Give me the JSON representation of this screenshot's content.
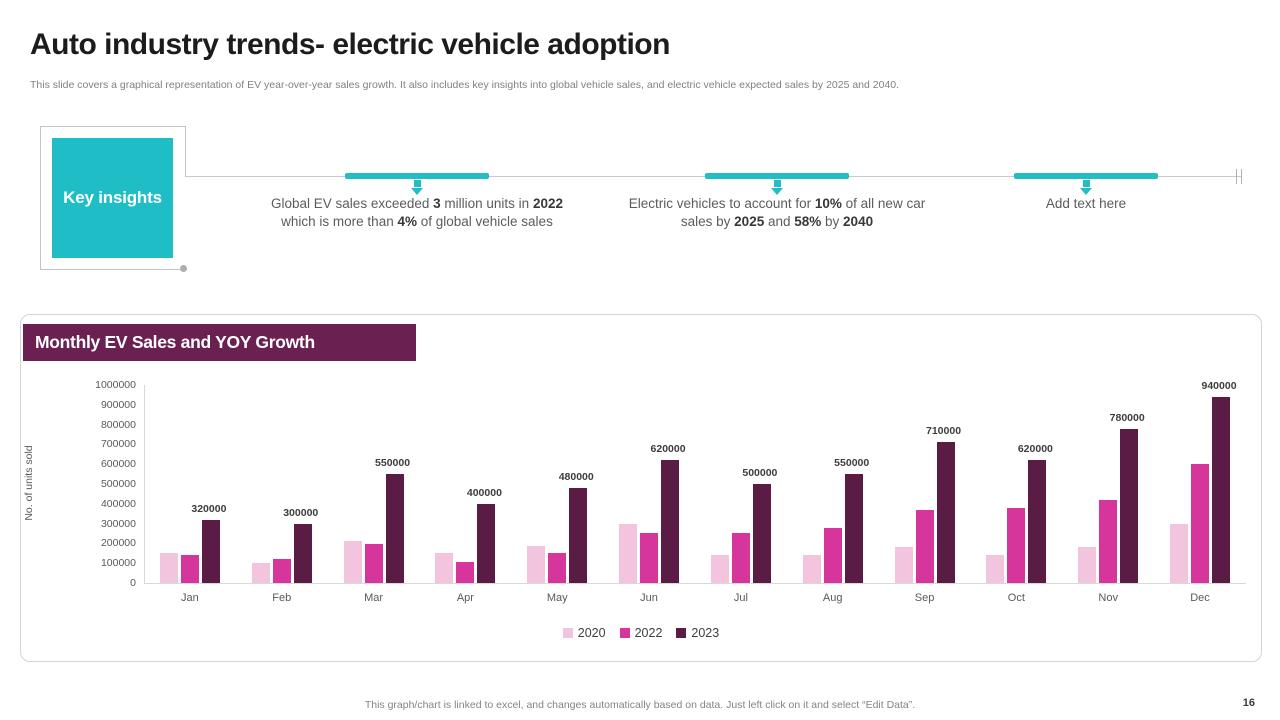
{
  "slide": {
    "title": "Auto industry trends- electric vehicle adoption",
    "subtitle": "This slide covers a graphical representation of EV year-over-year sales growth.  It also includes key insights into global vehicle sales, and electric vehicle expected sales by 2025 and 2040.",
    "footer_note": "This graph/chart is linked to excel, and changes automatically based on data. Just left click on it and select “Edit Data”.",
    "page_number": "16"
  },
  "key_insights": {
    "label": "Key insights",
    "stops": [
      {
        "segments": [
          {
            "text": "Global EV sales exceeded ",
            "bold": false
          },
          {
            "text": "3",
            "bold": true
          },
          {
            "text": " million units in ",
            "bold": false
          },
          {
            "text": "2022",
            "bold": true
          },
          {
            "text": " which is more than ",
            "bold": false
          },
          {
            "text": "4%",
            "bold": true
          },
          {
            "text": " of global vehicle sales",
            "bold": false
          }
        ]
      },
      {
        "segments": [
          {
            "text": "Electric vehicles to account for ",
            "bold": false
          },
          {
            "text": "10%",
            "bold": true
          },
          {
            "text": " of all new car sales by ",
            "bold": false
          },
          {
            "text": "2025",
            "bold": true
          },
          {
            "text": " and ",
            "bold": false
          },
          {
            "text": "58%",
            "bold": true
          },
          {
            "text": " by ",
            "bold": false
          },
          {
            "text": "2040",
            "bold": true
          }
        ]
      },
      {
        "segments": [
          {
            "text": "Add text here",
            "bold": false
          }
        ]
      }
    ]
  },
  "chart_data": {
    "type": "bar",
    "title": "Monthly EV Sales and YOY Growth",
    "xlabel": "",
    "ylabel": "No. of units sold",
    "ylim": [
      0,
      1000000
    ],
    "ytick_step": 100000,
    "grid": false,
    "legend_position": "bottom",
    "categories": [
      "Jan",
      "Feb",
      "Mar",
      "Apr",
      "May",
      "Jun",
      "Jul",
      "Aug",
      "Sep",
      "Oct",
      "Nov",
      "Dec"
    ],
    "series": [
      {
        "name": "2020",
        "color": "#f2c4dd",
        "data_labels": false,
        "values": [
          150000,
          100000,
          210000,
          150000,
          185000,
          300000,
          140000,
          140000,
          180000,
          140000,
          180000,
          300000
        ]
      },
      {
        "name": "2022",
        "color": "#d6369b",
        "data_labels": false,
        "values": [
          140000,
          120000,
          195000,
          105000,
          150000,
          250000,
          250000,
          280000,
          370000,
          380000,
          420000,
          600000
        ]
      },
      {
        "name": "2023",
        "color": "#5a1b45",
        "data_labels": true,
        "values": [
          320000,
          300000,
          550000,
          400000,
          480000,
          620000,
          500000,
          550000,
          710000,
          620000,
          780000,
          940000
        ]
      }
    ]
  }
}
